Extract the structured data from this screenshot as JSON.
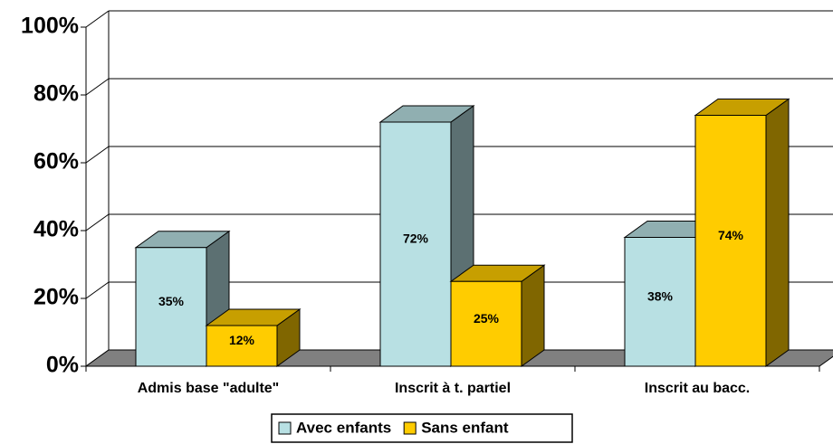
{
  "chart_data": {
    "type": "bar3d",
    "categories": [
      "Admis base \"adulte\"",
      "Inscrit à t. partiel",
      "Inscrit au bacc."
    ],
    "series": [
      {
        "name": "Avec enfants",
        "color": "#b8e0e3",
        "values": [
          35,
          72,
          38
        ],
        "value_labels": [
          "35%",
          "72%",
          "38%"
        ]
      },
      {
        "name": "Sans enfant",
        "color": "#ffcc00",
        "values": [
          12,
          25,
          74
        ],
        "value_labels": [
          "12%",
          "25%",
          "74%"
        ]
      }
    ],
    "ylim": [
      0,
      100
    ],
    "yticks": [
      {
        "value": 0,
        "label": "0%"
      },
      {
        "value": 20,
        "label": "20%"
      },
      {
        "value": 40,
        "label": "40%"
      },
      {
        "value": 60,
        "label": "60%"
      },
      {
        "value": 80,
        "label": "80%"
      },
      {
        "value": 100,
        "label": "100%"
      }
    ],
    "grid": true,
    "legend": "bottom"
  }
}
